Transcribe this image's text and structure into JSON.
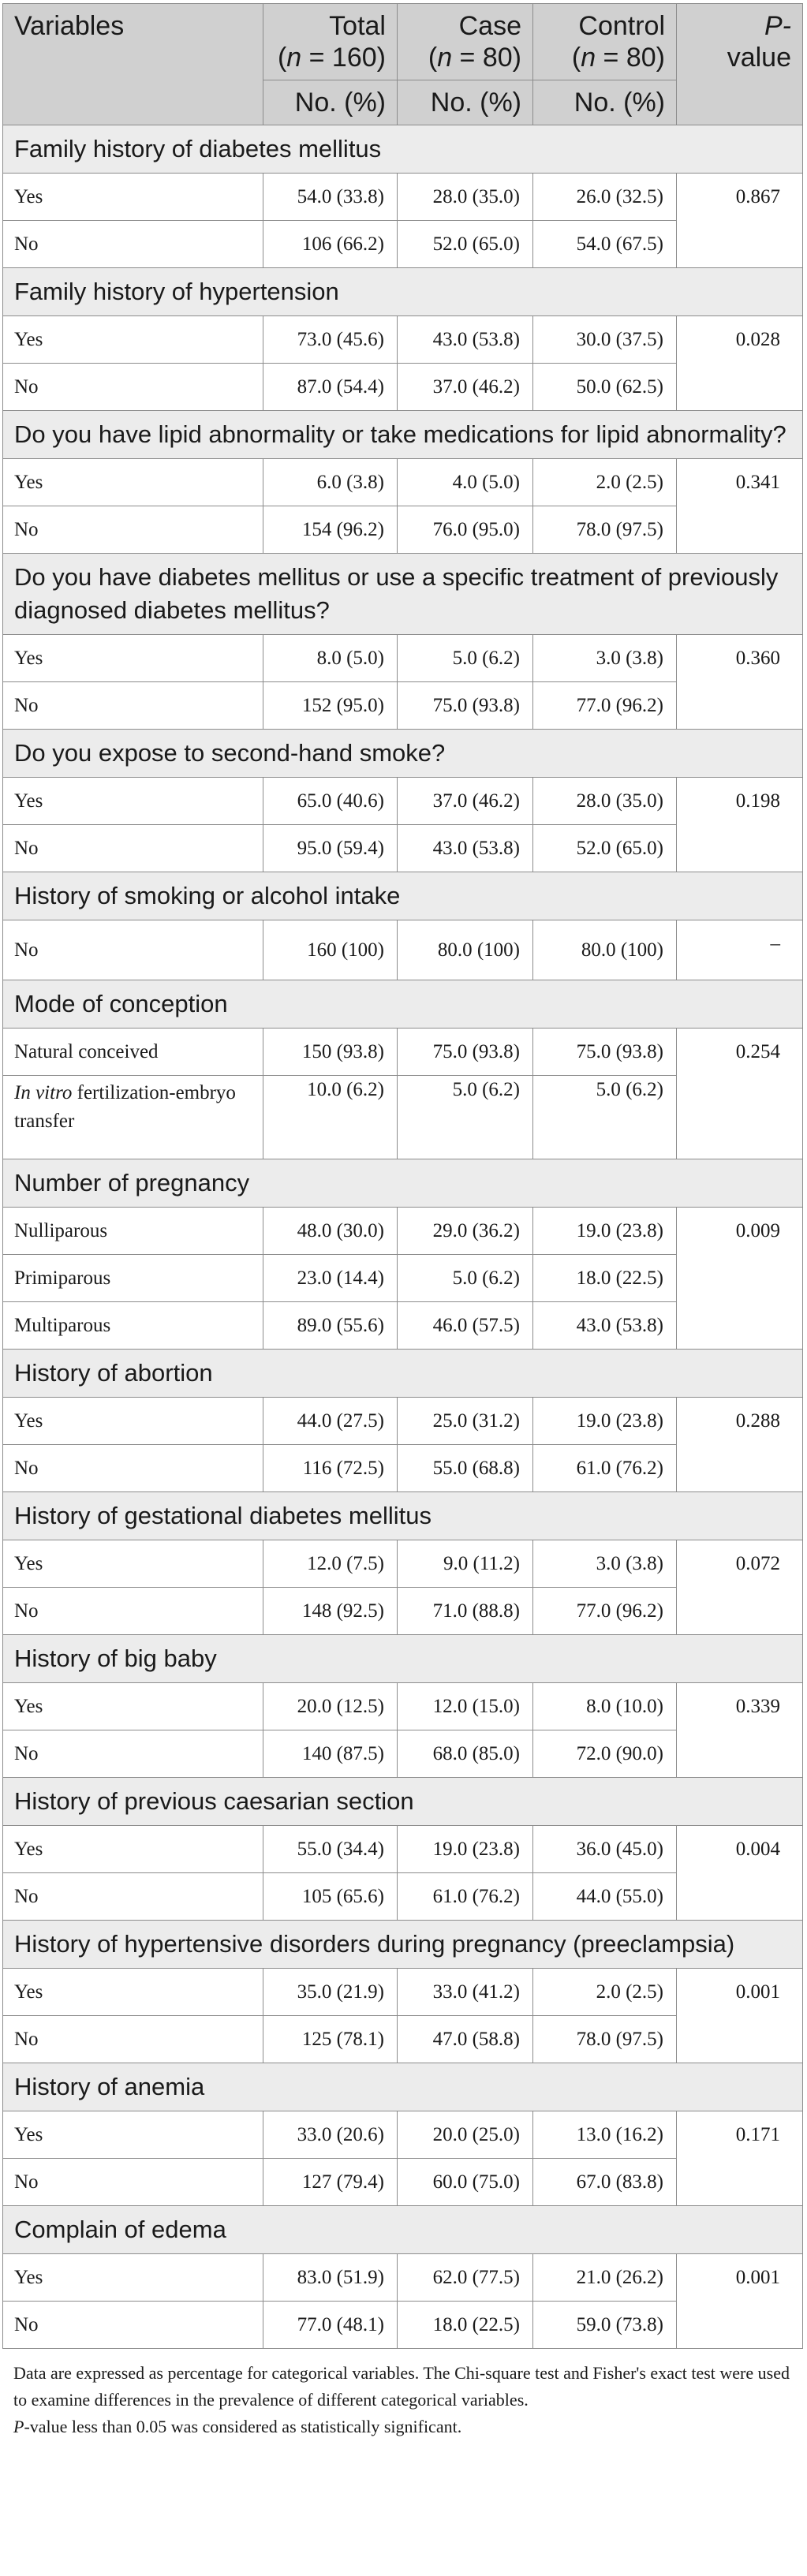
{
  "header": {
    "variables": "Variables",
    "total_label": "Total",
    "total_n": "(n = 160)",
    "case_label": "Case",
    "case_n": "(n = 80)",
    "control_label": "Control",
    "control_n": "(n = 80)",
    "p_label_1": "P-",
    "p_label_2": "value",
    "unit": "No. (%)"
  },
  "sections": [
    {
      "title": "Family history of diabetes mellitus",
      "p": "0.867",
      "rows": [
        {
          "label": "Yes",
          "total": "54.0 (33.8)",
          "case": "28.0 (35.0)",
          "control": "26.0 (32.5)"
        },
        {
          "label": "No",
          "total": "106 (66.2)",
          "case": "52.0 (65.0)",
          "control": "54.0 (67.5)"
        }
      ]
    },
    {
      "title": "Family history of hypertension",
      "p": "0.028",
      "rows": [
        {
          "label": "Yes",
          "total": "73.0 (45.6)",
          "case": "43.0 (53.8)",
          "control": "30.0 (37.5)"
        },
        {
          "label": "No",
          "total": "87.0 (54.4)",
          "case": "37.0 (46.2)",
          "control": "50.0 (62.5)"
        }
      ]
    },
    {
      "title": "Do you have lipid abnormality or take medications for lipid abnormality?",
      "p": "0.341",
      "rows": [
        {
          "label": "Yes",
          "total": "6.0 (3.8)",
          "case": "4.0 (5.0)",
          "control": "2.0 (2.5)"
        },
        {
          "label": "No",
          "total": "154 (96.2)",
          "case": "76.0 (95.0)",
          "control": "78.0 (97.5)"
        }
      ]
    },
    {
      "title": "Do you have diabetes mellitus or use a specific treatment of previously diagnosed diabetes mellitus?",
      "p": "0.360",
      "rows": [
        {
          "label": "Yes",
          "total": "8.0 (5.0)",
          "case": "5.0 (6.2)",
          "control": "3.0 (3.8)"
        },
        {
          "label": "No",
          "total": "152 (95.0)",
          "case": "75.0 (93.8)",
          "control": "77.0 (96.2)"
        }
      ]
    },
    {
      "title": "Do you expose to second-hand smoke?",
      "p": "0.198",
      "rows": [
        {
          "label": "Yes",
          "total": "65.0 (40.6)",
          "case": "37.0 (46.2)",
          "control": "28.0 (35.0)"
        },
        {
          "label": "No",
          "total": "95.0 (59.4)",
          "case": "43.0 (53.8)",
          "control": "52.0 (65.0)"
        }
      ]
    },
    {
      "title": "History of smoking or alcohol intake",
      "p": "–",
      "rows": [
        {
          "label": "No",
          "total": "160 (100)",
          "case": "80.0 (100)",
          "control": "80.0 (100)"
        }
      ]
    },
    {
      "title": "Mode of conception",
      "p": "0.254",
      "rows": [
        {
          "label": "Natural conceived",
          "total": "150 (93.8)",
          "case": "75.0 (93.8)",
          "control": "75.0 (93.8)"
        },
        {
          "label_italic": "In vitro",
          "label": " fertilization-embryo transfer",
          "total": "10.0 (6.2)",
          "case": "5.0 (6.2)",
          "control": "5.0 (6.2)"
        }
      ]
    },
    {
      "title": "Number of pregnancy",
      "p": "0.009",
      "rows": [
        {
          "label": "Nulliparous",
          "total": "48.0 (30.0)",
          "case": "29.0 (36.2)",
          "control": "19.0 (23.8)"
        },
        {
          "label": "Primiparous",
          "total": "23.0 (14.4)",
          "case": "5.0 (6.2)",
          "control": "18.0 (22.5)"
        },
        {
          "label": "Multiparous",
          "total": "89.0 (55.6)",
          "case": "46.0 (57.5)",
          "control": "43.0 (53.8)"
        }
      ]
    },
    {
      "title": "History of abortion",
      "p": "0.288",
      "rows": [
        {
          "label": "Yes",
          "total": "44.0 (27.5)",
          "case": "25.0 (31.2)",
          "control": "19.0 (23.8)"
        },
        {
          "label": "No",
          "total": "116 (72.5)",
          "case": "55.0 (68.8)",
          "control": "61.0 (76.2)"
        }
      ]
    },
    {
      "title": "History of gestational diabetes mellitus",
      "p": "0.072",
      "rows": [
        {
          "label": "Yes",
          "total": "12.0 (7.5)",
          "case": "9.0 (11.2)",
          "control": "3.0 (3.8)"
        },
        {
          "label": "No",
          "total": "148 (92.5)",
          "case": "71.0 (88.8)",
          "control": "77.0 (96.2)"
        }
      ]
    },
    {
      "title": "History of big baby",
      "p": "0.339",
      "rows": [
        {
          "label": "Yes",
          "total": "20.0 (12.5)",
          "case": "12.0 (15.0)",
          "control": "8.0 (10.0)"
        },
        {
          "label": "No",
          "total": "140 (87.5)",
          "case": "68.0 (85.0)",
          "control": "72.0 (90.0)"
        }
      ]
    },
    {
      "title": "History of previous caesarian section",
      "p": "0.004",
      "rows": [
        {
          "label": "Yes",
          "total": "55.0 (34.4)",
          "case": "19.0 (23.8)",
          "control": "36.0 (45.0)"
        },
        {
          "label": "No",
          "total": "105 (65.6)",
          "case": "61.0 (76.2)",
          "control": "44.0 (55.0)"
        }
      ]
    },
    {
      "title": "History of hypertensive disorders during pregnancy (preeclampsia)",
      "p": "0.001",
      "rows": [
        {
          "label": "Yes",
          "total": "35.0 (21.9)",
          "case": "33.0 (41.2)",
          "control": "2.0 (2.5)"
        },
        {
          "label": "No",
          "total": "125 (78.1)",
          "case": "47.0 (58.8)",
          "control": "78.0 (97.5)"
        }
      ]
    },
    {
      "title": "History of anemia",
      "p": "0.171",
      "rows": [
        {
          "label": "Yes",
          "total": "33.0 (20.6)",
          "case": "20.0 (25.0)",
          "control": "13.0 (16.2)"
        },
        {
          "label": "No",
          "total": "127 (79.4)",
          "case": "60.0 (75.0)",
          "control": "67.0 (83.8)"
        }
      ]
    },
    {
      "title": "Complain of edema",
      "p": "0.001",
      "rows": [
        {
          "label": "Yes",
          "total": "83.0 (51.9)",
          "case": "62.0 (77.5)",
          "control": "21.0 (26.2)"
        },
        {
          "label": "No",
          "total": "77.0 (48.1)",
          "case": "18.0 (22.5)",
          "control": "59.0 (73.8)"
        }
      ]
    }
  ],
  "notes": {
    "line1": "Data are expressed as percentage for categorical variables. The Chi-square test and Fisher's exact test were used to examine differences in the prevalence of different categorical variables.",
    "p_italic": "P",
    "line2": "-value less than 0.05 was considered as statistically significant."
  }
}
